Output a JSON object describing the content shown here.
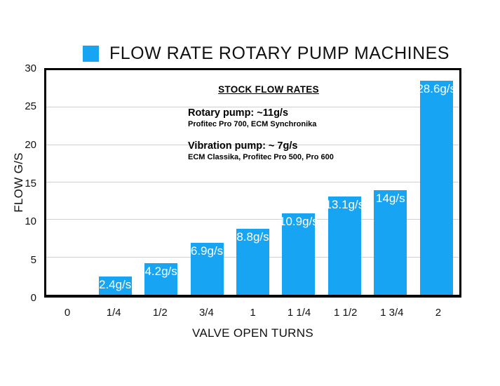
{
  "title": "FLOW RATE ROTARY PUMP MACHINES",
  "legend": {
    "swatch_icon": "blue-square-icon"
  },
  "colors": {
    "bar": "#17A5F3",
    "grid": "#cfcfcf",
    "frame": "#000000",
    "bar_label_text": "#ffffff",
    "background": "#ffffff"
  },
  "annotation": {
    "heading": "STOCK FLOW RATES",
    "rotary_line": "Rotary pump: ~11g/s",
    "rotary_sub": "Profitec Pro 700, ECM Synchronika",
    "vibration_line": "Vibration pump: ~ 7g/s",
    "vibration_sub": "ECM Classika, Profitec Pro 500, Pro 600"
  },
  "chart_data": {
    "type": "bar",
    "title": "FLOW RATE ROTARY PUMP MACHINES",
    "xlabel": "VALVE OPEN TURNS",
    "ylabel": "FLOW G/S",
    "categories": [
      "0",
      "1/4",
      "1/2",
      "3/4",
      "1",
      "1 1/4",
      "1 1/2",
      "1 3/4",
      "2"
    ],
    "values": [
      0,
      2.4,
      4.2,
      6.9,
      8.8,
      10.9,
      13.1,
      14,
      28.6
    ],
    "bar_labels": [
      "",
      "2.4g/s",
      "4.2g/s",
      "6.9g/s",
      "8.8g/s",
      "10.9g/s",
      "13.1g/s",
      "14g/s",
      "28.6g/s"
    ],
    "ylim": [
      0,
      30
    ],
    "yticks": [
      0,
      5,
      10,
      15,
      20,
      25,
      30
    ],
    "grid": "horizontal",
    "legend_position": "top"
  }
}
